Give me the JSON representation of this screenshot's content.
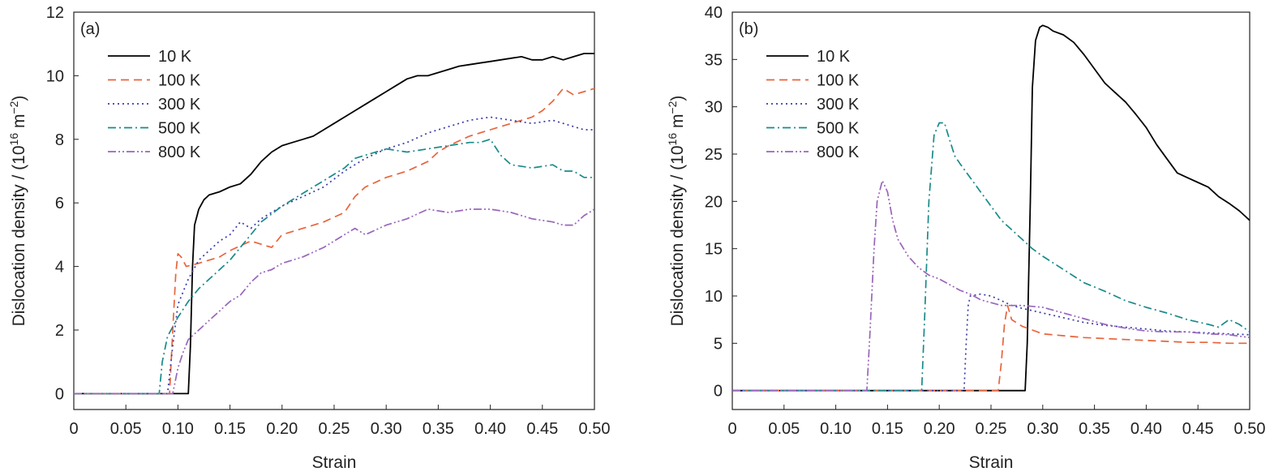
{
  "chart_data": [
    {
      "type": "line",
      "panel_label": "(a)",
      "xlabel": "Strain",
      "ylabel": "Dislocation  density / (10",
      "ylabel_exp": "16",
      "ylabel_unit": " m",
      "ylabel_unit_exp": "−2",
      "ylabel_close": ")",
      "xlim": [
        0,
        0.5
      ],
      "ylim": [
        -0.5,
        12
      ],
      "xticks": [
        "0",
        "0.05",
        "0.10",
        "0.15",
        "0.20",
        "0.25",
        "0.30",
        "0.35",
        "0.40",
        "0.45",
        "0.50"
      ],
      "yticks": [
        "0",
        "2",
        "4",
        "6",
        "8",
        "10",
        "12"
      ],
      "legend_position": "top-left",
      "series": [
        {
          "name": "10 K",
          "color": "#000000",
          "dash": "solid",
          "x": [
            0,
            0.11,
            0.112,
            0.114,
            0.116,
            0.12,
            0.125,
            0.13,
            0.14,
            0.15,
            0.16,
            0.17,
            0.18,
            0.19,
            0.2,
            0.21,
            0.22,
            0.23,
            0.24,
            0.25,
            0.26,
            0.27,
            0.28,
            0.29,
            0.3,
            0.31,
            0.32,
            0.33,
            0.34,
            0.35,
            0.36,
            0.37,
            0.38,
            0.39,
            0.4,
            0.41,
            0.42,
            0.43,
            0.44,
            0.45,
            0.46,
            0.47,
            0.48,
            0.49,
            0.5
          ],
          "y": [
            0,
            0,
            1.5,
            4.0,
            5.3,
            5.8,
            6.1,
            6.25,
            6.35,
            6.5,
            6.6,
            6.9,
            7.3,
            7.6,
            7.8,
            7.9,
            8.0,
            8.1,
            8.3,
            8.5,
            8.7,
            8.9,
            9.1,
            9.3,
            9.5,
            9.7,
            9.9,
            10.0,
            10.0,
            10.1,
            10.2,
            10.3,
            10.35,
            10.4,
            10.45,
            10.5,
            10.55,
            10.6,
            10.5,
            10.5,
            10.6,
            10.5,
            10.6,
            10.7,
            10.7
          ]
        },
        {
          "name": "100 K",
          "color": "#e8643c",
          "dash": "dashed",
          "x": [
            0,
            0.092,
            0.095,
            0.098,
            0.1,
            0.103,
            0.108,
            0.12,
            0.14,
            0.15,
            0.17,
            0.18,
            0.19,
            0.2,
            0.22,
            0.24,
            0.26,
            0.27,
            0.28,
            0.3,
            0.32,
            0.34,
            0.35,
            0.36,
            0.38,
            0.4,
            0.42,
            0.44,
            0.45,
            0.46,
            0.47,
            0.48,
            0.49,
            0.5
          ],
          "y": [
            0,
            0,
            2.0,
            3.8,
            4.4,
            4.3,
            4.0,
            4.1,
            4.3,
            4.5,
            4.8,
            4.7,
            4.6,
            5.0,
            5.2,
            5.4,
            5.7,
            6.2,
            6.5,
            6.8,
            7.0,
            7.3,
            7.6,
            7.8,
            8.1,
            8.3,
            8.5,
            8.7,
            8.9,
            9.2,
            9.6,
            9.4,
            9.5,
            9.6
          ]
        },
        {
          "name": "300 K",
          "color": "#3a3aa8",
          "dash": "dotted",
          "x": [
            0,
            0.09,
            0.095,
            0.1,
            0.11,
            0.12,
            0.13,
            0.14,
            0.15,
            0.16,
            0.17,
            0.18,
            0.2,
            0.22,
            0.24,
            0.26,
            0.28,
            0.3,
            0.32,
            0.34,
            0.36,
            0.38,
            0.4,
            0.42,
            0.44,
            0.46,
            0.48,
            0.49,
            0.5
          ],
          "y": [
            0,
            0,
            1.5,
            2.8,
            3.6,
            4.2,
            4.5,
            4.8,
            5.0,
            5.4,
            5.2,
            5.5,
            5.9,
            6.2,
            6.5,
            7.0,
            7.4,
            7.7,
            7.9,
            8.2,
            8.4,
            8.6,
            8.7,
            8.6,
            8.5,
            8.6,
            8.4,
            8.3,
            8.3
          ]
        },
        {
          "name": "500 K",
          "color": "#1a8a8a",
          "dash": "dashdot",
          "x": [
            0,
            0.082,
            0.085,
            0.09,
            0.1,
            0.11,
            0.12,
            0.13,
            0.14,
            0.15,
            0.16,
            0.17,
            0.18,
            0.2,
            0.22,
            0.24,
            0.26,
            0.27,
            0.28,
            0.3,
            0.32,
            0.34,
            0.36,
            0.38,
            0.39,
            0.4,
            0.41,
            0.42,
            0.44,
            0.46,
            0.47,
            0.48,
            0.49,
            0.5
          ],
          "y": [
            0,
            0,
            1.0,
            1.8,
            2.4,
            2.9,
            3.3,
            3.6,
            3.9,
            4.2,
            4.6,
            5.0,
            5.4,
            5.9,
            6.3,
            6.7,
            7.1,
            7.4,
            7.5,
            7.7,
            7.6,
            7.7,
            7.8,
            7.9,
            7.9,
            8.0,
            7.5,
            7.2,
            7.1,
            7.2,
            7.0,
            7.0,
            6.8,
            6.8
          ]
        },
        {
          "name": "800 K",
          "color": "#9966bb",
          "dash": "dashdotdot",
          "x": [
            0,
            0.095,
            0.1,
            0.105,
            0.11,
            0.12,
            0.13,
            0.14,
            0.15,
            0.16,
            0.17,
            0.18,
            0.19,
            0.2,
            0.22,
            0.24,
            0.26,
            0.27,
            0.28,
            0.3,
            0.32,
            0.34,
            0.36,
            0.38,
            0.4,
            0.42,
            0.44,
            0.46,
            0.47,
            0.48,
            0.49,
            0.5
          ],
          "y": [
            0,
            0,
            0.8,
            1.3,
            1.7,
            2.0,
            2.3,
            2.6,
            2.9,
            3.1,
            3.5,
            3.8,
            3.9,
            4.1,
            4.3,
            4.6,
            5.0,
            5.2,
            5.0,
            5.3,
            5.5,
            5.8,
            5.7,
            5.8,
            5.8,
            5.7,
            5.5,
            5.4,
            5.3,
            5.3,
            5.6,
            5.8
          ]
        }
      ]
    },
    {
      "type": "line",
      "panel_label": "(b)",
      "xlabel": "Strain",
      "ylabel": "Dislocation  density / (10",
      "ylabel_exp": "16",
      "ylabel_unit": " m",
      "ylabel_unit_exp": "−2",
      "ylabel_close": ")",
      "xlim": [
        0,
        0.5
      ],
      "ylim": [
        -2,
        40
      ],
      "xticks": [
        "0",
        "0.05",
        "0.10",
        "0.15",
        "0.20",
        "0.25",
        "0.30",
        "0.35",
        "0.40",
        "0.45",
        "0.50"
      ],
      "yticks": [
        "0",
        "5",
        "10",
        "15",
        "20",
        "25",
        "30",
        "35",
        "40"
      ],
      "legend_position": "top-left",
      "series": [
        {
          "name": "10 K",
          "color": "#000000",
          "dash": "solid",
          "x": [
            0,
            0.283,
            0.285,
            0.288,
            0.29,
            0.293,
            0.297,
            0.3,
            0.305,
            0.31,
            0.32,
            0.33,
            0.34,
            0.35,
            0.36,
            0.37,
            0.38,
            0.39,
            0.4,
            0.41,
            0.42,
            0.43,
            0.44,
            0.45,
            0.46,
            0.47,
            0.48,
            0.49,
            0.5
          ],
          "y": [
            0,
            0,
            5,
            20,
            32,
            37,
            38.4,
            38.6,
            38.4,
            38.0,
            37.6,
            36.8,
            35.5,
            34.0,
            32.5,
            31.5,
            30.5,
            29.2,
            27.8,
            26.0,
            24.5,
            23.0,
            22.5,
            22.0,
            21.5,
            20.5,
            19.8,
            19.0,
            18.0
          ]
        },
        {
          "name": "100 K",
          "color": "#e8643c",
          "dash": "dashed",
          "x": [
            0,
            0.257,
            0.26,
            0.263,
            0.266,
            0.27,
            0.28,
            0.29,
            0.3,
            0.32,
            0.34,
            0.36,
            0.38,
            0.4,
            0.42,
            0.44,
            0.46,
            0.48,
            0.5
          ],
          "y": [
            0,
            0,
            3,
            7,
            9,
            7.5,
            6.8,
            6.4,
            6.0,
            5.8,
            5.6,
            5.5,
            5.4,
            5.3,
            5.2,
            5.1,
            5.1,
            5.0,
            5.0
          ]
        },
        {
          "name": "300 K",
          "color": "#3a3aa8",
          "dash": "dotted",
          "x": [
            0,
            0.224,
            0.226,
            0.228,
            0.23,
            0.24,
            0.25,
            0.26,
            0.27,
            0.28,
            0.3,
            0.32,
            0.34,
            0.36,
            0.38,
            0.4,
            0.42,
            0.44,
            0.46,
            0.48,
            0.5
          ],
          "y": [
            0,
            0,
            5,
            9,
            10,
            10.2,
            10.0,
            9.5,
            9.0,
            8.7,
            8.2,
            7.7,
            7.2,
            6.9,
            6.7,
            6.5,
            6.3,
            6.2,
            6.1,
            6.0,
            5.9
          ]
        },
        {
          "name": "500 K",
          "color": "#1a8a8a",
          "dash": "dashdot",
          "x": [
            0,
            0.183,
            0.186,
            0.19,
            0.195,
            0.2,
            0.205,
            0.21,
            0.215,
            0.22,
            0.23,
            0.24,
            0.25,
            0.26,
            0.27,
            0.28,
            0.29,
            0.3,
            0.32,
            0.34,
            0.36,
            0.38,
            0.4,
            0.42,
            0.44,
            0.46,
            0.47,
            0.48,
            0.49,
            0.5
          ],
          "y": [
            0,
            0,
            8,
            20,
            27,
            28.3,
            28.3,
            26.5,
            24.8,
            24.0,
            22.5,
            21.0,
            19.5,
            18.0,
            17.0,
            16.0,
            15.0,
            14.2,
            12.8,
            11.4,
            10.5,
            9.5,
            8.8,
            8.2,
            7.5,
            7.0,
            6.7,
            7.5,
            7.0,
            6.2
          ]
        },
        {
          "name": "800 K",
          "color": "#9966bb",
          "dash": "dashdotdot",
          "x": [
            0,
            0.13,
            0.133,
            0.137,
            0.14,
            0.145,
            0.15,
            0.155,
            0.16,
            0.17,
            0.18,
            0.19,
            0.2,
            0.21,
            0.22,
            0.23,
            0.24,
            0.26,
            0.28,
            0.3,
            0.32,
            0.34,
            0.36,
            0.38,
            0.4,
            0.42,
            0.44,
            0.46,
            0.48,
            0.5
          ],
          "y": [
            0,
            0,
            6,
            15,
            20,
            22.2,
            21.0,
            18.0,
            16.0,
            14.2,
            13.0,
            12.2,
            11.8,
            11.2,
            10.6,
            10.2,
            9.6,
            9.0,
            9.0,
            8.8,
            8.2,
            7.6,
            7.0,
            6.6,
            6.3,
            6.2,
            6.2,
            6.0,
            5.9,
            5.6
          ]
        }
      ]
    }
  ]
}
